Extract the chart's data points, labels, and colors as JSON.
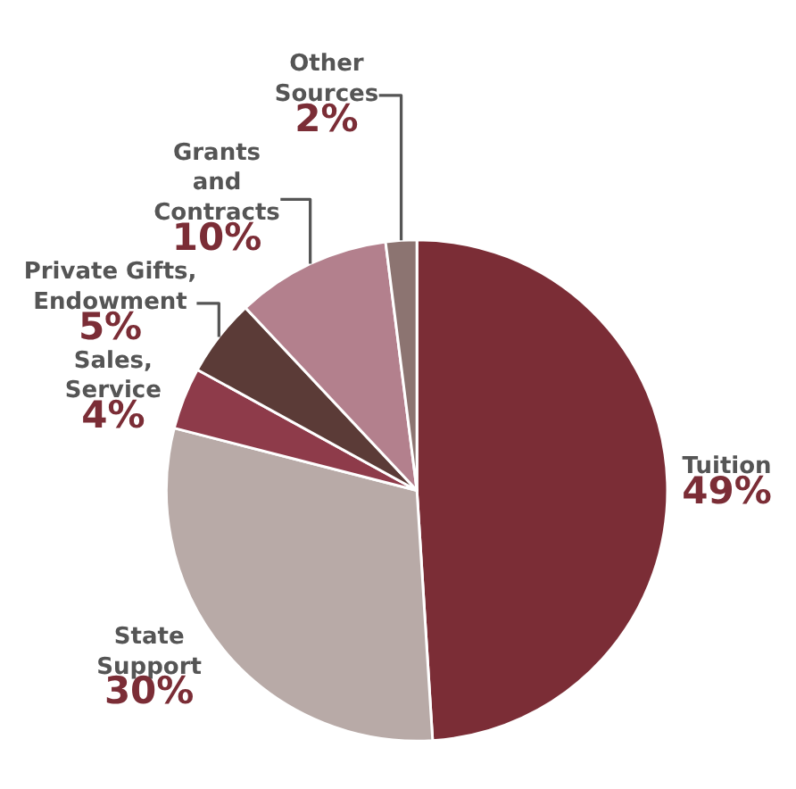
{
  "chart_data": {
    "type": "pie",
    "categories": [
      "Tuition",
      "State Support",
      "Sales, Service",
      "Private Gifts, Endowment",
      "Grants and Contracts",
      "Other Sources"
    ],
    "values": [
      49,
      30,
      4,
      5,
      10,
      2
    ],
    "colors": [
      "#7b2d36",
      "#b8aaa7",
      "#8e3b4a",
      "#5b3b37",
      "#b3808d",
      "#8c7471"
    ],
    "value_labels": [
      "49%",
      "30%",
      "4%",
      "5%",
      "10%",
      "2%"
    ],
    "legend": false
  }
}
